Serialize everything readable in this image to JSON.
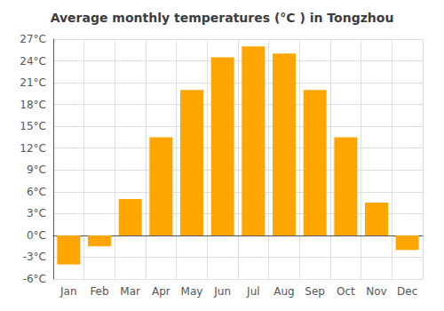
{
  "chart_data": {
    "type": "bar",
    "title": "Average monthly temperatures (°C ) in Tongzhou",
    "categories": [
      "Jan",
      "Feb",
      "Mar",
      "Apr",
      "May",
      "Jun",
      "Jul",
      "Aug",
      "Sep",
      "Oct",
      "Nov",
      "Dec"
    ],
    "values": [
      -4.0,
      -1.5,
      5.0,
      13.5,
      20.0,
      24.5,
      26.0,
      25.0,
      20.0,
      13.5,
      4.5,
      -2.0
    ],
    "color": "#FFA500",
    "ylim": [
      -6,
      27
    ],
    "yticks": [
      {
        "value": -6,
        "label": "-6°C"
      },
      {
        "value": -3,
        "label": "-3°C"
      },
      {
        "value": 0,
        "label": "0°C"
      },
      {
        "value": 3,
        "label": "3°C"
      },
      {
        "value": 6,
        "label": "6°C"
      },
      {
        "value": 9,
        "label": "9°C"
      },
      {
        "value": 12,
        "label": "12°C"
      },
      {
        "value": 15,
        "label": "15°C"
      },
      {
        "value": 18,
        "label": "18°C"
      },
      {
        "value": 21,
        "label": "21°C"
      },
      {
        "value": 24,
        "label": "24°C"
      },
      {
        "value": 27,
        "label": "27°C"
      }
    ],
    "grid": true
  }
}
